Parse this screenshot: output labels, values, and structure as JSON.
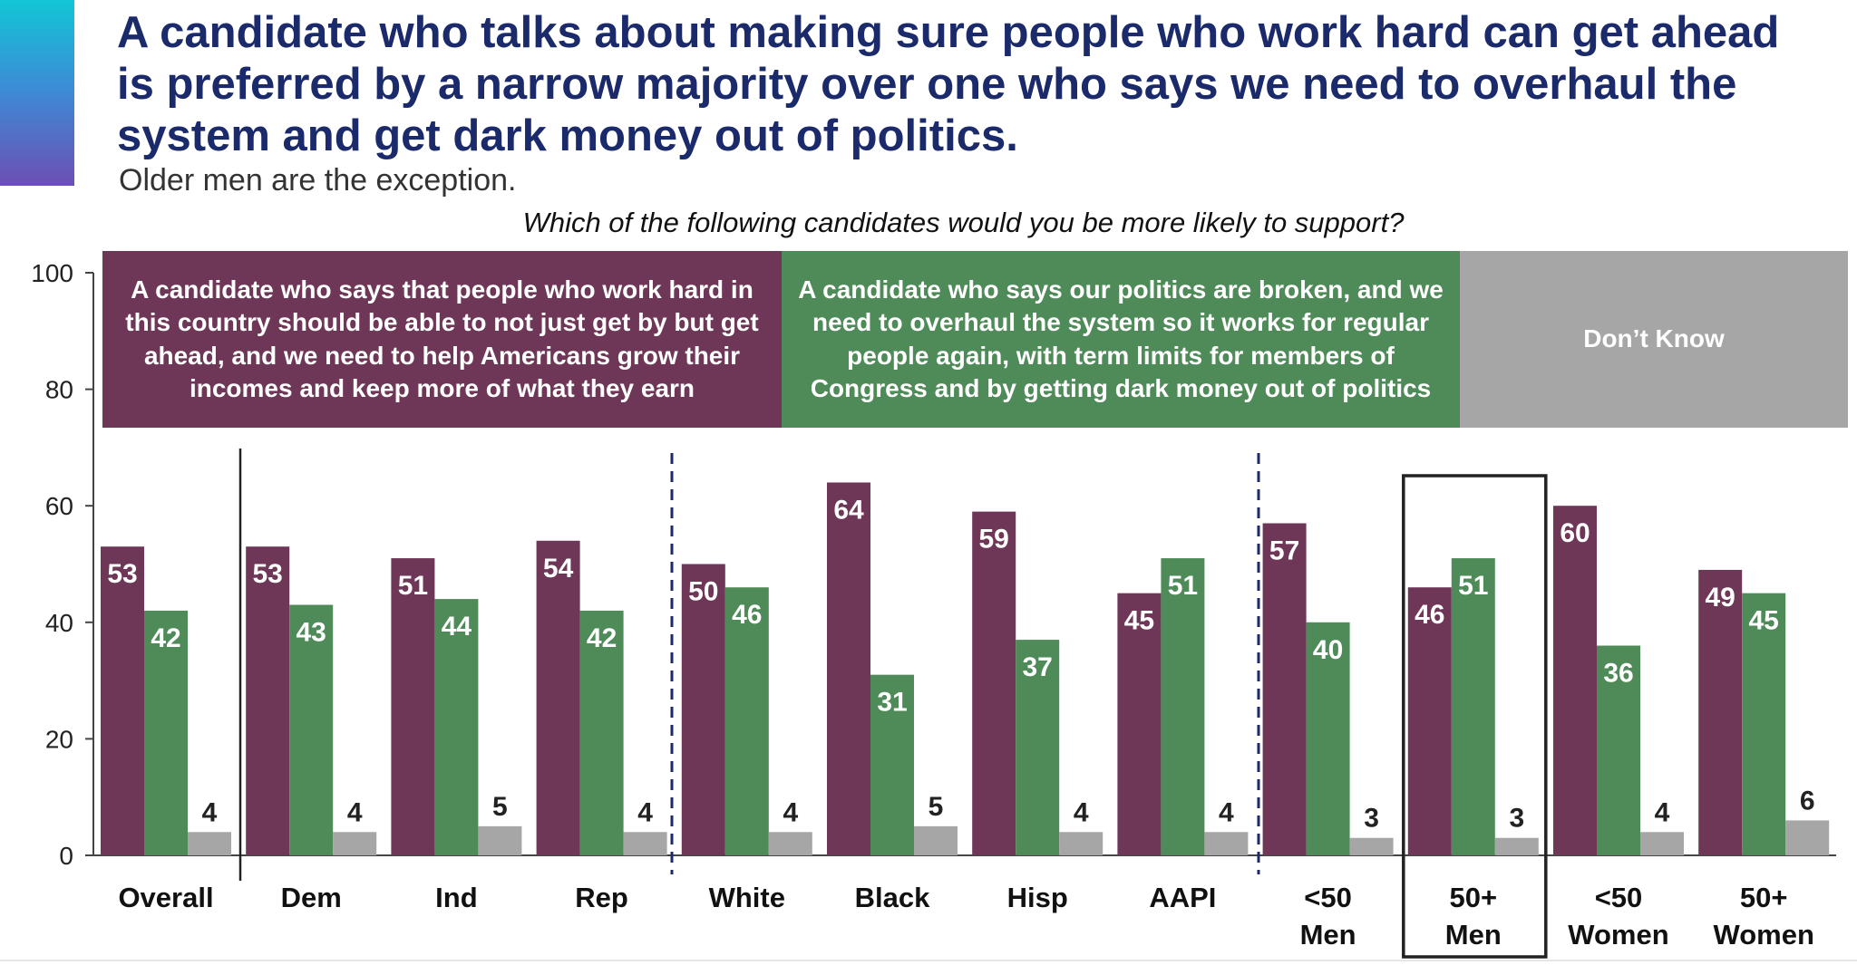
{
  "header": {
    "title": "A candidate who talks about making sure people who work hard can get ahead is preferred by a narrow majority over one who says we need to overhaul the system and get dark money out of politics.",
    "subtitle": "Older men are the exception.",
    "question": "Which of the following candidates would you be more likely to support?"
  },
  "legend": [
    {
      "label": "A candidate who says that people who work hard in this country should be able to not just get by but get ahead, and we need to help Americans grow their incomes and keep more of what they earn",
      "color": "#6e3657"
    },
    {
      "label": "A candidate who says our politics are broken, and we need to overhaul the system so it works for regular people again, with term limits for members of Congress and by getting dark money out of politics",
      "color": "#4f8b58"
    },
    {
      "label": "Don’t Know",
      "color": "#a6a6a6"
    }
  ],
  "chart_data": {
    "type": "bar",
    "categories": [
      "Overall",
      "Dem",
      "Ind",
      "Rep",
      "White",
      "Black",
      "Hisp",
      "AAPI",
      "<50 Men",
      "50+ Men",
      "<50 Women",
      "50+ Women"
    ],
    "series": [
      {
        "values": [
          53,
          53,
          51,
          54,
          50,
          64,
          59,
          45,
          57,
          46,
          60,
          49
        ],
        "color": "#6e3657"
      },
      {
        "values": [
          42,
          43,
          44,
          42,
          46,
          31,
          37,
          51,
          40,
          51,
          36,
          45
        ],
        "color": "#4f8b58"
      },
      {
        "values": [
          4,
          4,
          5,
          4,
          4,
          5,
          4,
          4,
          3,
          3,
          4,
          6
        ],
        "color": "#a6a6a6"
      }
    ],
    "ylim": [
      0,
      100
    ],
    "yticks": [
      0,
      20,
      40,
      60,
      80,
      100
    ],
    "highlighted_category": "50+ Men",
    "data_labels": true
  }
}
